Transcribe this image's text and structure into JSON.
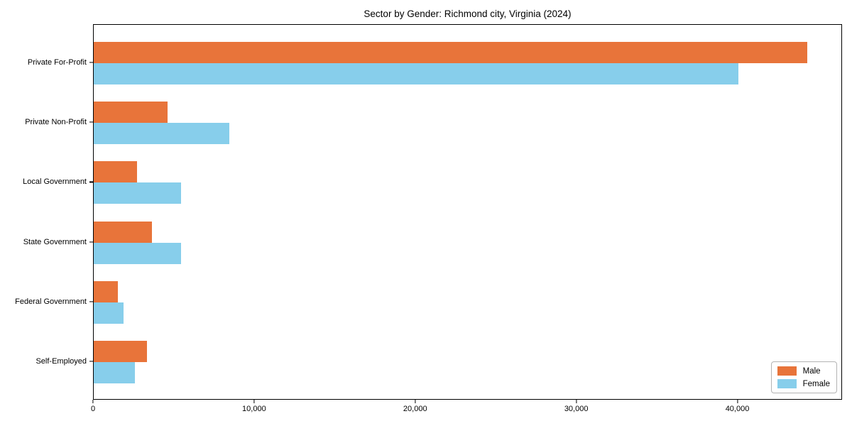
{
  "chart_data": {
    "type": "bar",
    "orientation": "horizontal",
    "title": "Sector by Gender: Richmond city, Virginia (2024)",
    "xlabel": "",
    "ylabel": "",
    "grid": false,
    "xlim": [
      0,
      46500
    ],
    "categories": [
      "Private For-Profit",
      "Private Non-Profit",
      "Local Government",
      "State Government",
      "Federal Government",
      "Self-Employed"
    ],
    "series": [
      {
        "name": "Male",
        "color": "#E8743A",
        "values": [
          44300,
          4600,
          2700,
          3600,
          1500,
          3300
        ]
      },
      {
        "name": "Female",
        "color": "#87CEEB",
        "values": [
          40000,
          8400,
          5400,
          5400,
          1850,
          2550
        ]
      }
    ],
    "x_ticks": [
      {
        "value": 0,
        "label": "0"
      },
      {
        "value": 10000,
        "label": "10,000"
      },
      {
        "value": 20000,
        "label": "20,000"
      },
      {
        "value": 30000,
        "label": "30,000"
      },
      {
        "value": 40000,
        "label": "40,000"
      }
    ],
    "legend": {
      "position": "lower right",
      "labels": [
        "Male",
        "Female"
      ]
    }
  }
}
